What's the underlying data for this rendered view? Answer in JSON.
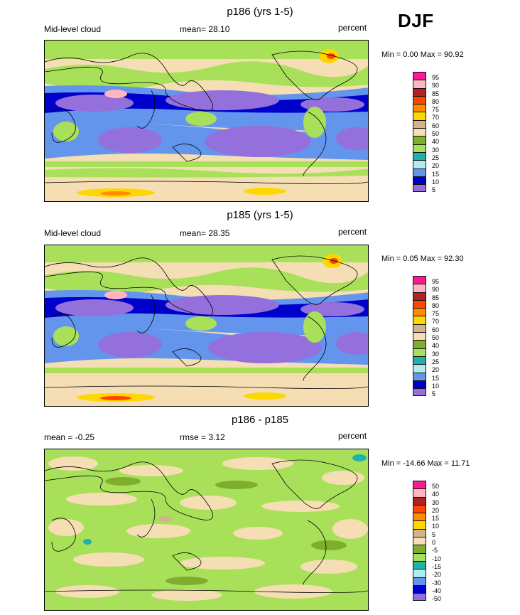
{
  "season": "DJF",
  "panels": [
    {
      "title": "p186 (yrs 1-5)",
      "left_label": "Mid-level cloud",
      "center_label": "mean=  28.10",
      "units": "percent",
      "minmax": "Min =   0.00 Max =  90.92",
      "legend": [
        "95",
        "90",
        "85",
        "80",
        "75",
        "70",
        "60",
        "50",
        "40",
        "30",
        "25",
        "20",
        "15",
        "10",
        "5"
      ],
      "colors": [
        "#ff1a94",
        "#ffb6c1",
        "#b22222",
        "#ff4500",
        "#ff8c00",
        "#ffd700",
        "#d2b48c",
        "#f5deb3",
        "#7fae2e",
        "#a8e05a",
        "#20b2aa",
        "#afeeee",
        "#6495ed",
        "#0000cd",
        "#9370db"
      ]
    },
    {
      "title": "p185 (yrs 1-5)",
      "left_label": "Mid-level cloud",
      "center_label": "mean=  28.35",
      "units": "percent",
      "minmax": "Min =   0.05 Max =  92.30",
      "legend": [
        "95",
        "90",
        "85",
        "80",
        "75",
        "70",
        "60",
        "50",
        "40",
        "30",
        "25",
        "20",
        "15",
        "10",
        "5"
      ],
      "colors": [
        "#ff1a94",
        "#ffb6c1",
        "#b22222",
        "#ff4500",
        "#ff8c00",
        "#ffd700",
        "#d2b48c",
        "#f5deb3",
        "#7fae2e",
        "#a8e05a",
        "#20b2aa",
        "#afeeee",
        "#6495ed",
        "#0000cd",
        "#9370db"
      ]
    },
    {
      "title": "p186 - p185",
      "left_label": "mean =  -0.25",
      "center_label": "rmse =    3.12",
      "units": "percent",
      "minmax": "Min = -14.66 Max =  11.71",
      "legend": [
        "50",
        "40",
        "30",
        "20",
        "15",
        "10",
        "5",
        "0",
        "-5",
        "-10",
        "-15",
        "-20",
        "-30",
        "-40",
        "-50"
      ],
      "colors": [
        "#ff1a94",
        "#ffb6c1",
        "#b22222",
        "#ff4500",
        "#ff8c00",
        "#ffd700",
        "#d2b48c",
        "#f5deb3",
        "#7fae2e",
        "#a8e05a",
        "#20b2aa",
        "#afeeee",
        "#6495ed",
        "#0000cd",
        "#9370db"
      ]
    }
  ]
}
